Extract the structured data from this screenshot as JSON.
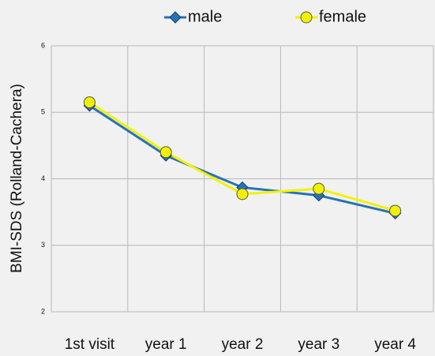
{
  "chart_data": {
    "type": "line",
    "y_label": "BMI-SDS (Rolland-Cachera)",
    "categories": [
      "1st visit",
      "year 1",
      "year 2",
      "year 3",
      "year 4"
    ],
    "series": [
      {
        "name": "male",
        "color": "#2672b8",
        "marker": "diamond",
        "values": [
          5.1,
          4.35,
          3.87,
          3.75,
          3.48
        ]
      },
      {
        "name": "female",
        "color": "#f2f200",
        "marker": "circle",
        "values": [
          5.15,
          4.4,
          3.77,
          3.85,
          3.52
        ]
      }
    ],
    "ylim": [
      2,
      6
    ],
    "yticks": [
      2,
      3,
      4,
      5,
      6
    ],
    "grid": true,
    "legend": "top"
  }
}
